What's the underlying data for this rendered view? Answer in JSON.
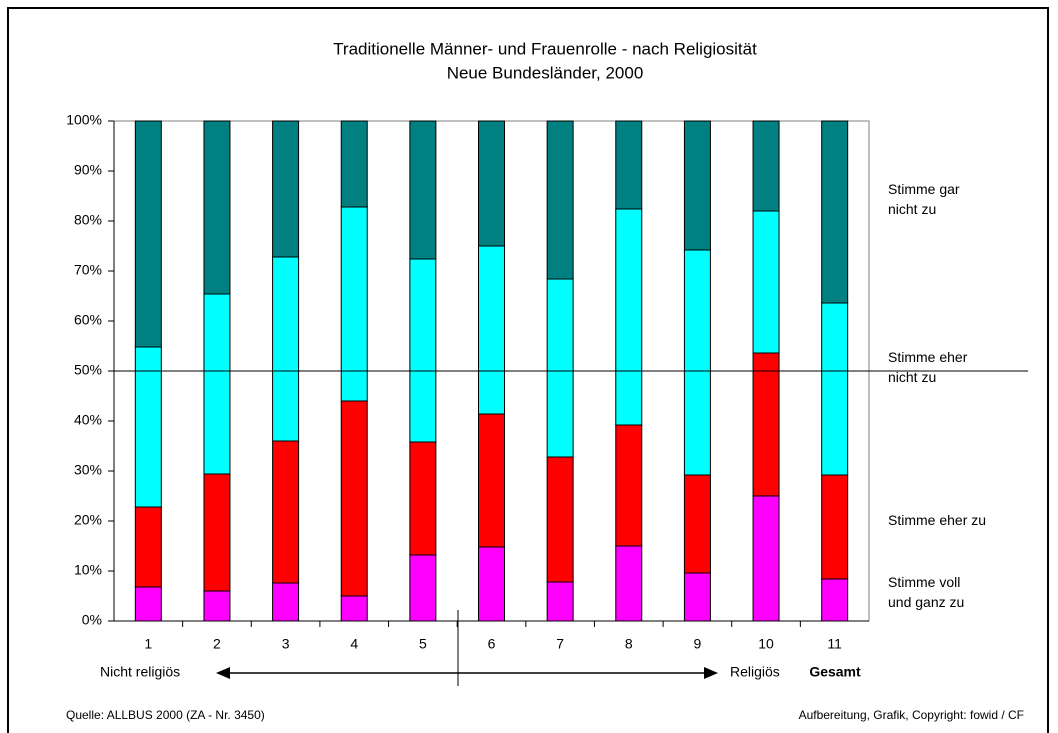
{
  "chart_data": {
    "type": "stacked_bar",
    "title": "Traditionelle Männer- und Frauenrolle - nach Religiosität",
    "subtitle": "Neue Bundesländer, 2000",
    "categories": [
      "1",
      "2",
      "3",
      "4",
      "5",
      "6",
      "7",
      "8",
      "9",
      "10",
      "11"
    ],
    "series": [
      {
        "name": "Stimme voll\nund ganz zu",
        "color": "#ff00ff",
        "values": [
          6.8,
          6.0,
          7.6,
          5.0,
          13.2,
          14.8,
          7.8,
          15.0,
          9.6,
          25.0,
          8.4
        ]
      },
      {
        "name": "Stimme eher zu",
        "color": "#ff0000",
        "values": [
          16.0,
          23.4,
          28.4,
          39.0,
          22.6,
          26.6,
          25.0,
          24.2,
          19.6,
          28.6,
          20.8
        ]
      },
      {
        "name": "Stimme eher\nnicht zu",
        "color": "#00ffff",
        "values": [
          32.0,
          36.0,
          36.8,
          38.8,
          36.6,
          33.6,
          35.6,
          43.2,
          45.0,
          28.4,
          34.4
        ]
      },
      {
        "name": "Stimme gar\nnicht zu",
        "color": "#008080",
        "values": [
          45.2,
          34.6,
          27.2,
          17.2,
          27.6,
          25.0,
          31.6,
          17.6,
          25.8,
          18.0,
          36.4
        ]
      }
    ],
    "ylim": [
      0,
      100
    ],
    "yticks": [
      {
        "value": 0,
        "label": "0%"
      },
      {
        "value": 10,
        "label": "10%"
      },
      {
        "value": 20,
        "label": "20%"
      },
      {
        "value": 30,
        "label": "30%"
      },
      {
        "value": 40,
        "label": "40%"
      },
      {
        "value": 50,
        "label": "50%"
      },
      {
        "value": 60,
        "label": "60%"
      },
      {
        "value": 70,
        "label": "70%"
      },
      {
        "value": 80,
        "label": "80%"
      },
      {
        "value": 90,
        "label": "90%"
      },
      {
        "value": 100,
        "label": "100%"
      }
    ],
    "reference_line": 50,
    "annotations": {
      "left": "Nicht religiös",
      "right": "Religiös",
      "total": "Gesamt"
    },
    "source": "Quelle: ALLBUS 2000 (ZA - Nr. 3450)",
    "credit": "Aufbereitung, Grafik, Copyright: fowid / CF"
  }
}
